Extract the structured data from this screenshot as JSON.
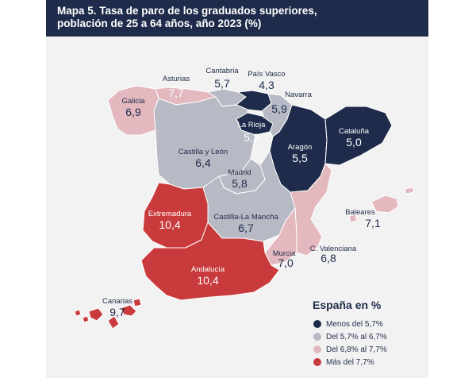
{
  "title_line1": "Mapa 5. Tasa de paro de los graduados superiores,",
  "title_line2": "población de 25 a 64 años, año 2023 (%)",
  "colors": {
    "header": "#1e2b4a",
    "menos_5_7": "#1e2b4a",
    "del_5_7_al_6_7": "#b7bac4",
    "del_6_8_al_7_7": "#e3b8bf",
    "mas_7_7": "#c93a3c"
  },
  "regions": {
    "galicia": {
      "name": "Galicia",
      "value": "6,9"
    },
    "asturias": {
      "name": "Asturias",
      "value": "7,7"
    },
    "cantabria": {
      "name": "Cantabria",
      "value": "5,7"
    },
    "pais_vasco": {
      "name": "País Vasco",
      "value": "4,3"
    },
    "navarra": {
      "name": "Navarra",
      "value": "5,9"
    },
    "la_rioja": {
      "name": "La Rioja",
      "value": "5,3"
    },
    "cataluna": {
      "name": "Cataluña",
      "value": "5,0"
    },
    "aragon": {
      "name": "Aragón",
      "value": "5,5"
    },
    "castilla_leon": {
      "name": "Castilla y León",
      "value": "6,4"
    },
    "madrid": {
      "name": "Madrid",
      "value": "5,8"
    },
    "extremadura": {
      "name": "Extremadura",
      "value": "10,4"
    },
    "castilla_la_mancha": {
      "name": "Castilla-La Mancha",
      "value": "6,7"
    },
    "baleares": {
      "name": "Baleares",
      "value": "7,1"
    },
    "c_valenciana": {
      "name": "C. Valenciana",
      "value": "6,8"
    },
    "murcia": {
      "name": "Murcia",
      "value": "7,0"
    },
    "andalucia": {
      "name": "Andalucía",
      "value": "10,4"
    },
    "canarias": {
      "name": "Canarias",
      "value": "9,7"
    }
  },
  "legend": {
    "title": "España en %",
    "items": [
      {
        "label": "Menos del 5,7%"
      },
      {
        "label": "Del 5,7% al 6,7%"
      },
      {
        "label": "Del 6,8% al 7,7%"
      },
      {
        "label": "Más del 7,7%"
      }
    ]
  }
}
